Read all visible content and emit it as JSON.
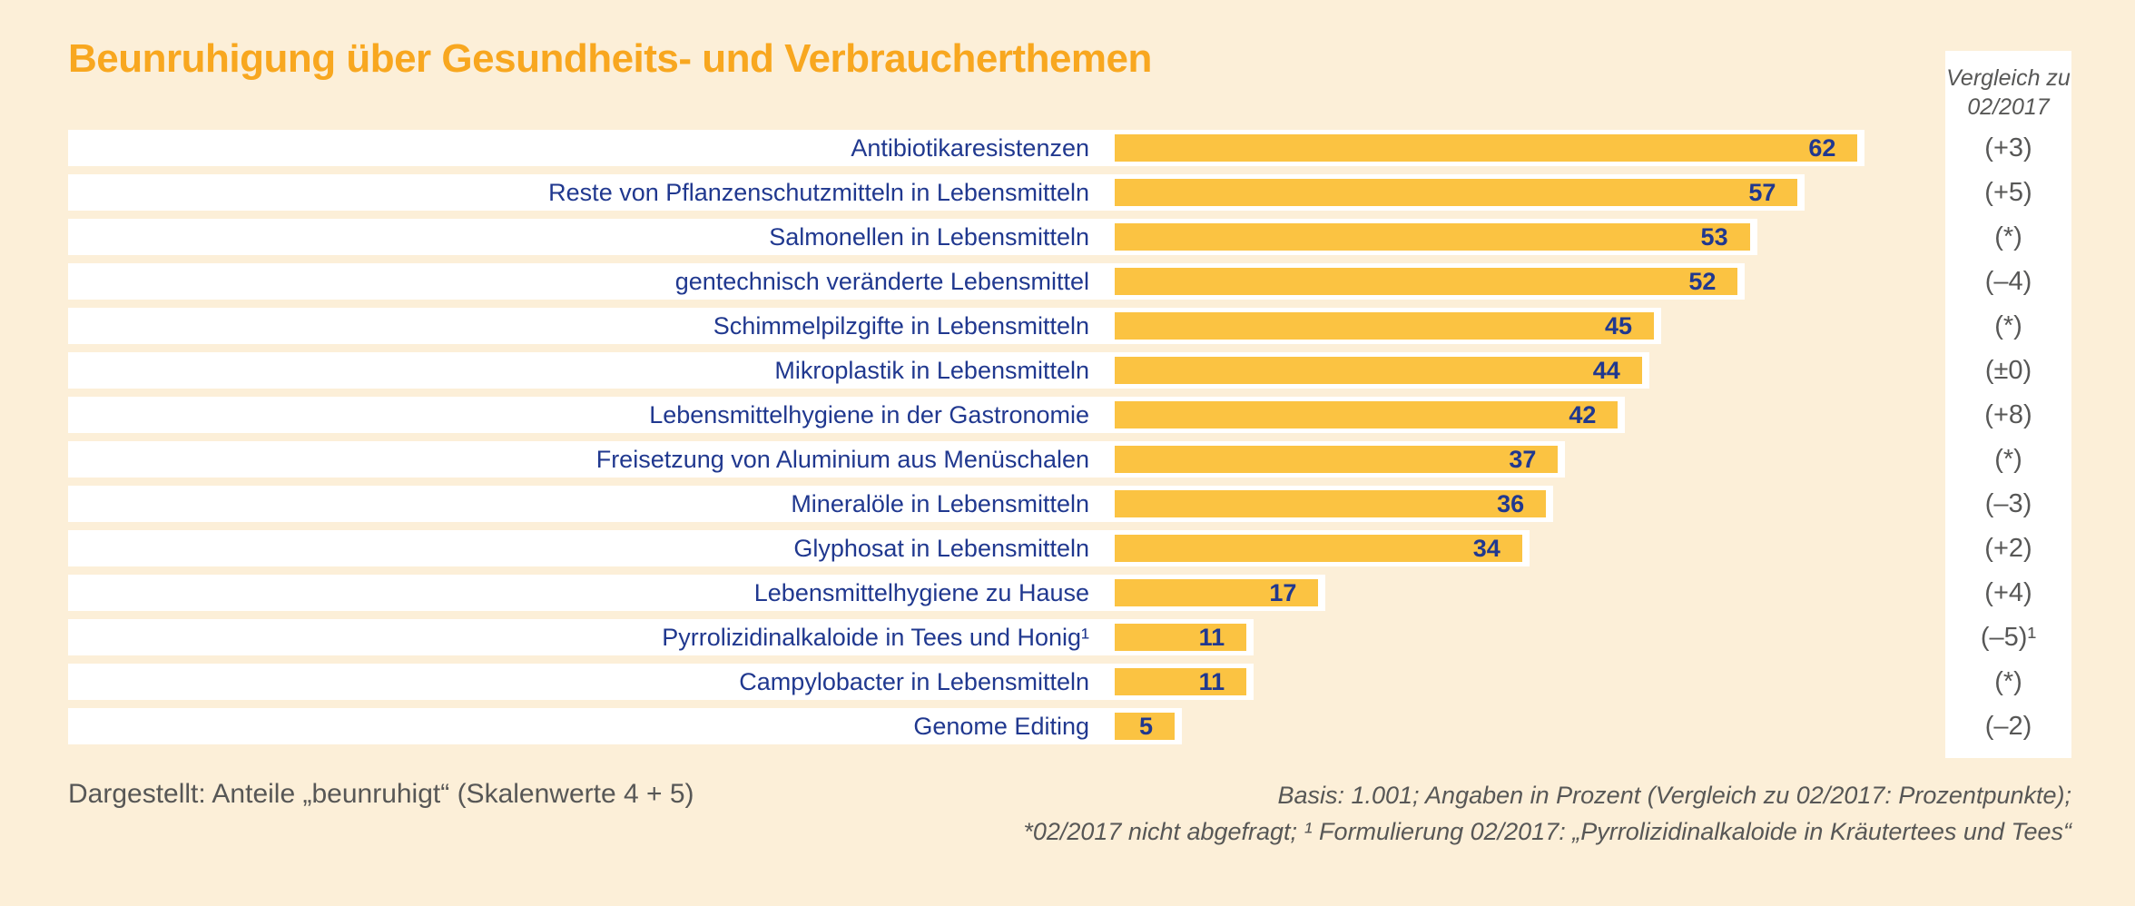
{
  "title": "Beunruhigung über Gesundheits- und Verbraucherthemen",
  "comparison_column": {
    "header": "Vergleich zu 02/2017",
    "values": [
      "(+3)",
      "(+5)",
      "(*)",
      "(–4)",
      "(*)",
      "(±0)",
      "(+8)",
      "(*)",
      "(–3)",
      "(+2)",
      "(+4)",
      "(–5)¹",
      "(*)",
      "(–2)"
    ]
  },
  "chart_data": {
    "type": "bar",
    "orientation": "horizontal",
    "title": "Beunruhigung über Gesundheits- und Verbraucherthemen",
    "unit": "Prozent",
    "categories": [
      "Antibiotikaresistenzen",
      "Reste von Pflanzenschutzmitteln in Lebensmitteln",
      "Salmonellen in Lebensmitteln",
      "gentechnisch veränderte Lebensmittel",
      "Schimmelpilzgifte in Lebensmitteln",
      "Mikroplastik in Lebensmitteln",
      "Lebensmittelhygiene in der Gastronomie",
      "Freisetzung von Aluminium aus Menüschalen",
      "Mineralöle in Lebensmitteln",
      "Glyphosat in Lebensmitteln",
      "Lebensmittelhygiene zu Hause",
      "Pyrrolizidinalkaloide in Tees und Honig¹",
      "Campylobacter in Lebensmitteln",
      "Genome Editing"
    ],
    "values": [
      62,
      57,
      53,
      52,
      45,
      44,
      42,
      37,
      36,
      34,
      17,
      11,
      11,
      5
    ],
    "comparison_to_02_2017": [
      "+3",
      "+5",
      "*",
      "–4",
      "*",
      "±0",
      "+8",
      "*",
      "–3",
      "+2",
      "+4",
      "–5¹",
      "*",
      "–2"
    ],
    "xlim": [
      0,
      68
    ],
    "legend_position": "none",
    "grid": false
  },
  "footer": {
    "left": "Dargestellt: Anteile „beunruhigt“ (Skalenwerte 4 + 5)",
    "right_line1": "Basis: 1.001; Angaben in Prozent (Vergleich zu 02/2017: Prozentpunkte);",
    "right_line2": "*02/2017 nicht abgefragt; ¹ Formulierung 02/2017: „Pyrrolizidinalkaloide in Kräutertees und Tees“"
  },
  "colors": {
    "background": "#FCEFD8",
    "row_background": "#FFFFFF",
    "bar": "#FBC342",
    "title": "#F8A71F",
    "label_blue": "#20388F",
    "gray_text": "#575756"
  }
}
